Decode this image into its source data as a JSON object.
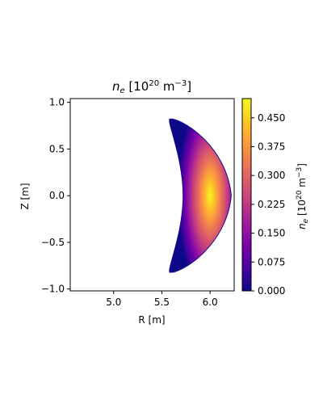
{
  "chart_data": {
    "type": "heatmap",
    "title": "n_e [10^20 m^-3]",
    "xlabel": "R [m]",
    "ylabel": "Z [m]",
    "colorbar_label": "n_e [10^20 m^-3]",
    "xlim": [
      4.55,
      6.25
    ],
    "ylim": [
      -1.02,
      1.04
    ],
    "xticks": [
      {
        "value": 5.0,
        "label": "5.0"
      },
      {
        "value": 5.5,
        "label": "5.5"
      },
      {
        "value": 6.0,
        "label": "6.0"
      }
    ],
    "yticks": [
      {
        "value": 1.0,
        "label": "1.0"
      },
      {
        "value": 0.5,
        "label": "0.5"
      },
      {
        "value": 0.0,
        "label": "0.0"
      },
      {
        "value": -0.5,
        "label": "−0.5"
      },
      {
        "value": -1.0,
        "label": "−1.0"
      }
    ],
    "colorbar_ticks": [
      {
        "value": 0.0,
        "label": "0.000"
      },
      {
        "value": 0.075,
        "label": "0.075"
      },
      {
        "value": 0.15,
        "label": "0.150"
      },
      {
        "value": 0.225,
        "label": "0.225"
      },
      {
        "value": 0.3,
        "label": "0.300"
      },
      {
        "value": 0.375,
        "label": "0.375"
      },
      {
        "value": 0.45,
        "label": "0.450"
      }
    ],
    "colorbar_range": [
      0.0,
      0.5
    ],
    "colormap": "plasma",
    "colormap_stops": [
      "#0d0887",
      "#46039f",
      "#7201a8",
      "#9c179e",
      "#bd3786",
      "#d8576b",
      "#ed7953",
      "#fb9f3a",
      "#fdca26",
      "#f0f921"
    ],
    "peak_value": 0.5,
    "peak_location": {
      "R": 6.0,
      "Z": 0.0
    },
    "plasma_boundary": {
      "outer_R": 6.22,
      "outer_tip_R": 5.68,
      "inner_R": 5.72,
      "inner_tip_R": 5.58,
      "tip_Z": 0.82
    },
    "grid": false
  }
}
